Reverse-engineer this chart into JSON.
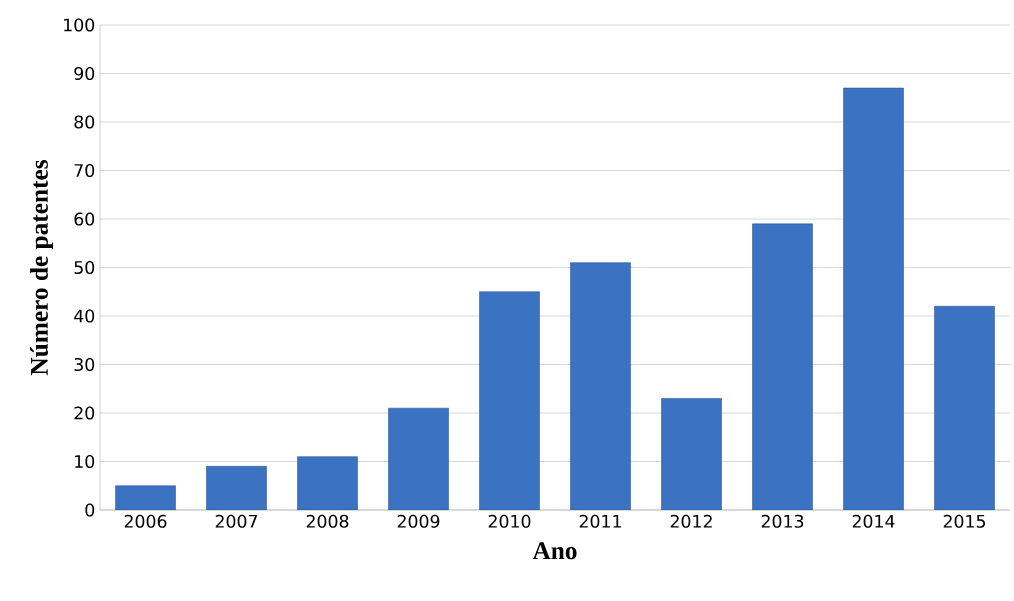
{
  "chart_data": {
    "type": "bar",
    "xlabel": "Ano",
    "ylabel": "Número de patentes",
    "categories": [
      "2006",
      "2007",
      "2008",
      "2009",
      "2010",
      "2011",
      "2012",
      "2013",
      "2014",
      "2015"
    ],
    "values": [
      5,
      9,
      11,
      21,
      45,
      51,
      23,
      59,
      87,
      42
    ],
    "color": "#3c72c2",
    "ylim": [
      0,
      100
    ],
    "yticks": [
      0,
      10,
      20,
      30,
      40,
      50,
      60,
      70,
      80,
      90,
      100
    ],
    "grid": "y"
  }
}
